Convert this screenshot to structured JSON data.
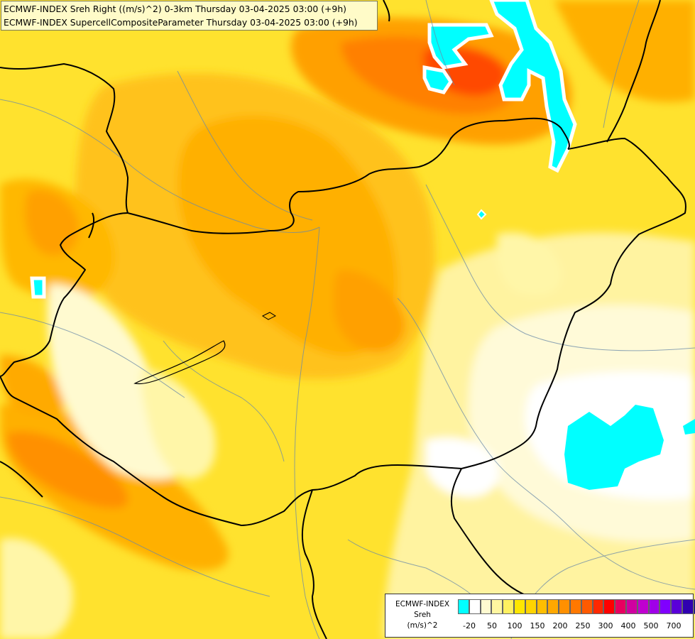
{
  "header": {
    "line1": "ECMWF-INDEX Sreh Right ((m/s)^2) 0-3km Thursday 03-04-2025 03:00 (+9h)",
    "line2": "ECMWF-INDEX SupercellCompositeParameter Thursday 03-04-2025 03:00 (+9h)"
  },
  "legend": {
    "title1": "ECMWF-INDEX",
    "title2": "Sreh",
    "title3": "(m/s)^2",
    "swatch_colors": [
      "#00ffff",
      "#ffffff",
      "#fffad0",
      "#fff6a0",
      "#fff060",
      "#ffe600",
      "#ffd400",
      "#ffbe00",
      "#ffa800",
      "#ff9000",
      "#ff7800",
      "#ff5a00",
      "#ff2800",
      "#ff0000",
      "#e80060",
      "#d000a0",
      "#c000d0",
      "#a000e8",
      "#8000ff",
      "#5a00d8",
      "#3000b0",
      "#000080"
    ],
    "tick_labels": [
      "-20",
      "50",
      "100",
      "150",
      "200",
      "250",
      "300",
      "400",
      "500",
      "700"
    ]
  }
}
